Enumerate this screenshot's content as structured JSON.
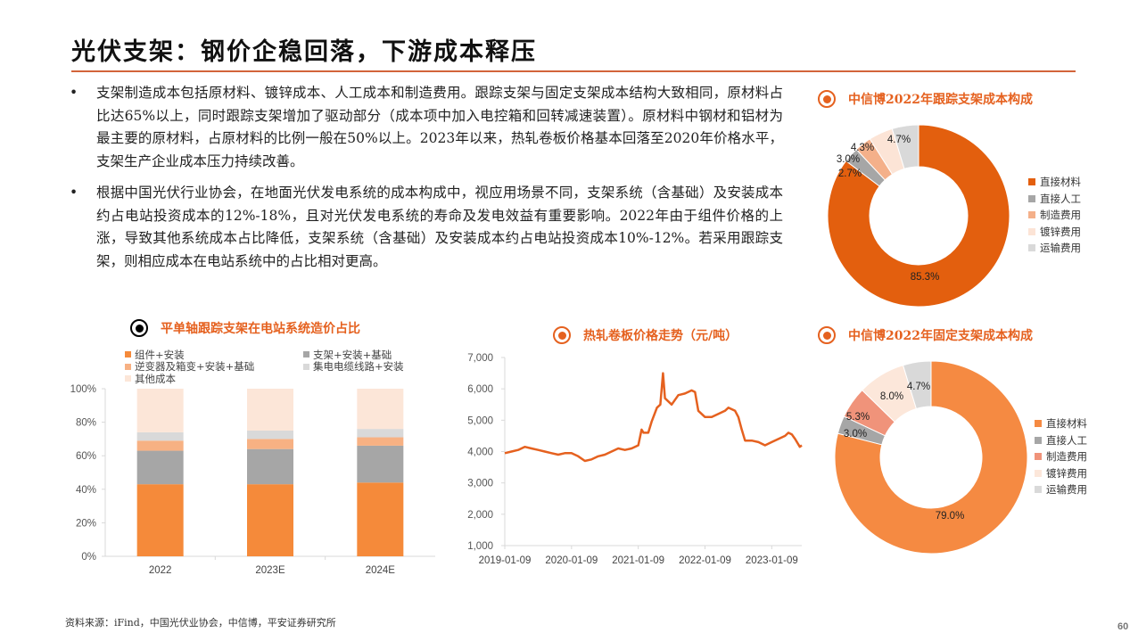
{
  "page": {
    "title": "光伏支架：钢价企稳回落，下游成本释压",
    "page_number": "60",
    "source": "资料来源：iFind，中国光伏业协会，中信博，平安证券研究所",
    "accent_color": "#D3643A"
  },
  "bullets": [
    {
      "marker": "•",
      "text": "支架制造成本包括原材料、镀锌成本、人工成本和制造费用。跟踪支架与固定支架成本结构大致相同，原材料占比达65%以上，同时跟踪支架增加了驱动部分（成本项中加入电控箱和回转减速装置）。原材料中钢材和铝材为最主要的原材料，占原材料的比例一般在50%以上。2023年以来，热轧卷板价格基本回落至2020年价格水平，支架生产企业成本压力持续改善。"
    },
    {
      "marker": "•",
      "text": "根据中国光伏行业协会，在地面光伏发电系统的成本构成中，视应用场景不同，支架系统（含基础）及安装成本约占电站投资成本的12%-18%，且对光伏发电系统的寿命及发电效益有重要影响。2022年由于组件价格的上涨，导致其他系统成本占比降低，支架系统（含基础）及安装成本约占电站投资成本10%-12%。若采用跟踪支架，则相应成本在电站系统中的占比相对更高。"
    }
  ],
  "chart_data": [
    {
      "type": "bar",
      "stacked": true,
      "title": "平单轴跟踪支架在电站系统造价占比",
      "categories": [
        "2022",
        "2023E",
        "2024E"
      ],
      "series": [
        {
          "name": "组件+安装",
          "color": "#F58A3A",
          "values": [
            43,
            43,
            44
          ]
        },
        {
          "name": "支架+安装+基础",
          "color": "#A6A6A6",
          "values": [
            20,
            21,
            22
          ]
        },
        {
          "name": "逆变器及箱变+安装+基础",
          "color": "#F7B183",
          "values": [
            6,
            6,
            5
          ]
        },
        {
          "name": "集电电缆线路+安装",
          "color": "#D9D9D9",
          "values": [
            5,
            5,
            5
          ]
        },
        {
          "name": "其他成本",
          "color": "#FCE6D8",
          "values": [
            26,
            25,
            24
          ]
        }
      ],
      "yticks": [
        "0%",
        "20%",
        "40%",
        "60%",
        "80%",
        "100%"
      ],
      "ylim": [
        0,
        100
      ],
      "xlabel": "",
      "ylabel": "",
      "legend_position": "top"
    },
    {
      "type": "line",
      "title": "热轧卷板价格走势（元/吨）",
      "xlabel": "",
      "ylabel": "",
      "xticks": [
        "2019-01-09",
        "2020-01-09",
        "2021-01-09",
        "2022-01-09",
        "2023-01-09"
      ],
      "yticks": [
        "1,000",
        "2,000",
        "3,000",
        "4,000",
        "5,000",
        "6,000",
        "7,000"
      ],
      "ylim": [
        1000,
        7000
      ],
      "series": [
        {
          "name": "热轧卷板价格",
          "color": "#E5611F",
          "x": [
            2019.0,
            2019.1,
            2019.2,
            2019.3,
            2019.4,
            2019.5,
            2019.6,
            2019.7,
            2019.8,
            2019.9,
            2020.0,
            2020.1,
            2020.2,
            2020.3,
            2020.4,
            2020.5,
            2020.6,
            2020.7,
            2020.8,
            2020.9,
            2021.0,
            2021.05,
            2021.08,
            2021.15,
            2021.2,
            2021.28,
            2021.33,
            2021.37,
            2021.4,
            2021.45,
            2021.5,
            2021.6,
            2021.7,
            2021.8,
            2021.85,
            2021.9,
            2022.0,
            2022.1,
            2022.2,
            2022.3,
            2022.35,
            2022.45,
            2022.5,
            2022.55,
            2022.6,
            2022.7,
            2022.8,
            2022.9,
            2023.0,
            2023.1,
            2023.2,
            2023.25,
            2023.3,
            2023.35,
            2023.42,
            2023.45
          ],
          "values": [
            3950,
            4000,
            4050,
            4150,
            4100,
            4050,
            4000,
            3950,
            3900,
            3950,
            3950,
            3850,
            3700,
            3750,
            3850,
            3900,
            4000,
            4100,
            4050,
            4100,
            4200,
            4700,
            4600,
            4600,
            4950,
            5400,
            5500,
            6500,
            5700,
            5600,
            5500,
            5800,
            5850,
            5950,
            5900,
            5300,
            5100,
            5100,
            5200,
            5300,
            5400,
            5300,
            5100,
            4700,
            4350,
            4350,
            4300,
            4200,
            4300,
            4400,
            4500,
            4600,
            4550,
            4400,
            4150,
            4200
          ]
        }
      ]
    },
    {
      "type": "pie",
      "donut": true,
      "title": "中信博2022年跟踪支架成本构成",
      "categories": [
        "直接材料",
        "直接人工",
        "制造费用",
        "镀锌费用",
        "运输费用"
      ],
      "values": [
        85.3,
        2.7,
        3.0,
        4.3,
        4.7
      ],
      "labels": [
        "85.3%",
        "2.7%",
        "3.0%",
        "4.3%",
        "4.7%"
      ],
      "colors": [
        "#E35F0E",
        "#A6A6A6",
        "#F4B08A",
        "#FCE4D6",
        "#D9D9D9"
      ],
      "legend_position": "right"
    },
    {
      "type": "pie",
      "donut": true,
      "title": "中信博2022年固定支架成本构成",
      "categories": [
        "直接材料",
        "直接人工",
        "制造费用",
        "镀锌费用",
        "运输费用"
      ],
      "values": [
        79.0,
        3.0,
        5.3,
        8.0,
        4.7
      ],
      "labels": [
        "79.0%",
        "3.0%",
        "5.3%",
        "8.0%",
        "4.7%"
      ],
      "colors": [
        "#F58A42",
        "#A6A6A6",
        "#F0937A",
        "#FCE7DA",
        "#D9D9D9"
      ],
      "legend_position": "right"
    }
  ]
}
